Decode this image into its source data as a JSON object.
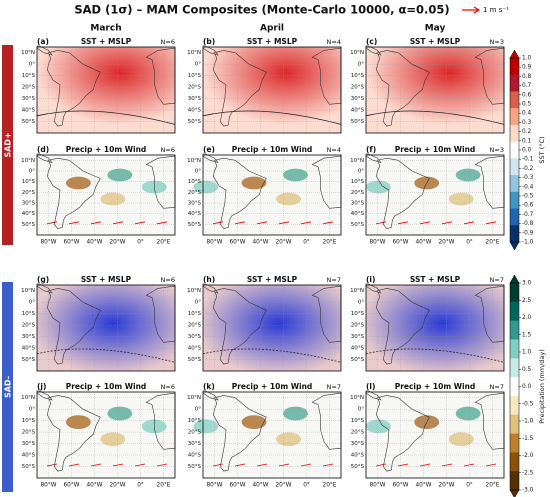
{
  "title": "SAD (1σ) – MAM Composites (Monte-Carlo 10000, α=0.05)",
  "legend_label": "1 m s⁻¹",
  "columns": [
    "March",
    "April",
    "May"
  ],
  "side_labels": [
    "SAD+",
    "SAD-"
  ],
  "panels": [
    {
      "label": "(a)",
      "title": "SST + MSLP",
      "n": "N=6"
    },
    {
      "label": "(b)",
      "title": "SST + MSLP",
      "n": "N=4"
    },
    {
      "label": "(c)",
      "title": "SST + MSLP",
      "n": "N=3"
    },
    {
      "label": "(d)",
      "title": "Precip + 10m Wind",
      "n": "N=6"
    },
    {
      "label": "(e)",
      "title": "Precip + 10m Wind",
      "n": "N=4"
    },
    {
      "label": "(f)",
      "title": "Precip + 10m Wind",
      "n": "N=3"
    },
    {
      "label": "(g)",
      "title": "SST + MSLP",
      "n": "N=6"
    },
    {
      "label": "(h)",
      "title": "SST + MSLP",
      "n": "N=7"
    },
    {
      "label": "(i)",
      "title": "SST + MSLP",
      "n": "N=7"
    },
    {
      "label": "(j)",
      "title": "Precip + 10m Wind",
      "n": "N=6"
    },
    {
      "label": "(k)",
      "title": "Precip + 10m Wind",
      "n": "N=7"
    },
    {
      "label": "(l)",
      "title": "Precip + 10m Wind",
      "n": "N=7"
    }
  ],
  "lat_ticks": [
    "10°N",
    "0°",
    "10°S",
    "20°S",
    "30°S",
    "40°S",
    "50°S"
  ],
  "lon_ticks": [
    "80°W",
    "60°W",
    "40°W",
    "20°W",
    "0°",
    "20°E"
  ],
  "colorbars": [
    {
      "label": "SST (°C)",
      "ticks": [
        "1.0",
        "0.9",
        "0.8",
        "0.7",
        "0.6",
        "0.5",
        "0.4",
        "0.3",
        "0.2",
        "0.1",
        "0.0",
        "-0.1",
        "-0.2",
        "-0.3",
        "-0.4",
        "-0.5",
        "-0.6",
        "-0.7",
        "-0.8",
        "-0.9",
        "-1.0"
      ]
    },
    {
      "label": "Precipitation (mm/day)",
      "ticks": [
        "3.0",
        "2.5",
        "2.0",
        "1.5",
        "1.0",
        "0.5",
        "0.0",
        "-0.5",
        "-1.0",
        "-1.5",
        "-2.0",
        "-2.5",
        "-3.0"
      ]
    }
  ]
}
